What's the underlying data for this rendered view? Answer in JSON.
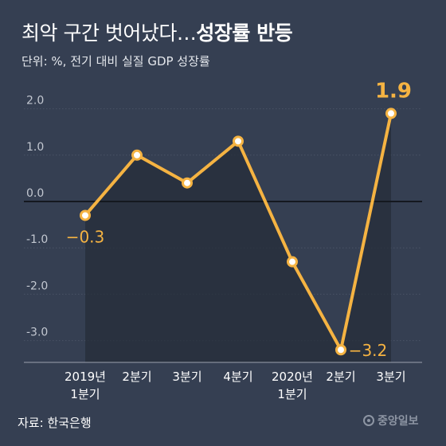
{
  "header": {
    "title_light": "최악 구간 벗어났다…",
    "title_bold": "성장률 반등",
    "subtitle": "단위: %, 전기 대비 실질 GDP 성장률"
  },
  "footer": {
    "source": "자료: 한국은행",
    "logo_text": "중앙일보"
  },
  "colors": {
    "background": "#353f52",
    "area_fill": "#262d39",
    "line": "#f5b342",
    "point_fill": "#ffffff"
  },
  "chart_data": {
    "type": "line",
    "title": "최악 구간 벗어났다…성장률 반등",
    "subtitle": "단위: %, 전기 대비 실질 GDP 성장률",
    "ylim": [
      -3.4,
      2.4
    ],
    "yticks": [
      "2.0",
      "1.0",
      "0.0",
      "-1.0",
      "-2.0",
      "-3.0"
    ],
    "ytick_values": [
      2,
      1,
      0,
      -1,
      -2,
      -3
    ],
    "grid": true,
    "categories": [
      [
        "2019년",
        "1분기"
      ],
      [
        "2분기"
      ],
      [
        "3분기"
      ],
      [
        "4분기"
      ],
      [
        "2020년",
        "1분기"
      ],
      [
        "2분기"
      ],
      [
        "3분기"
      ]
    ],
    "series": [
      {
        "values": [
          -0.3,
          1.0,
          0.4,
          1.3,
          -1.3,
          -3.2,
          1.9
        ]
      }
    ],
    "data_labels": [
      {
        "index": 0,
        "text": "−0.3"
      },
      {
        "index": 5,
        "text": "−3.2"
      },
      {
        "index": 6,
        "text": "1.9"
      }
    ]
  }
}
